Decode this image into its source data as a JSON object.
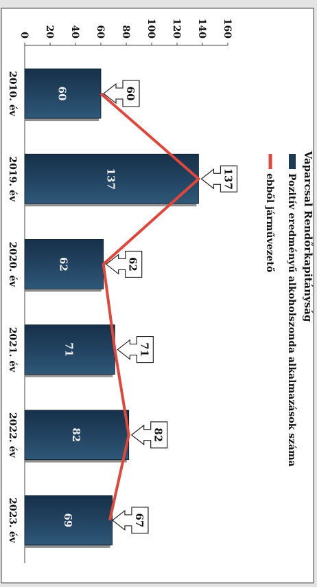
{
  "chart_data": {
    "type": "bar",
    "title": "Vaparcsal Rendőrkapitányság",
    "categories": [
      "2010. év",
      "2019. év",
      "2020. év",
      "2021. év",
      "2022. év",
      "2023. év"
    ],
    "series": [
      {
        "name": "Pozitív eredményű alkoholszonda alkalmazások száma",
        "type": "bar",
        "color": "#1e3b55",
        "values": [
          60,
          137,
          62,
          71,
          82,
          69
        ]
      },
      {
        "name": "ebből járművezető",
        "type": "line",
        "color": "#e0473a",
        "values": [
          60,
          137,
          62,
          71,
          82,
          67
        ]
      }
    ],
    "bar_labels": [
      "60",
      "137",
      "62",
      "71",
      "82",
      "69"
    ],
    "callout_labels": [
      "60",
      "137",
      "62",
      "71",
      "82",
      "67"
    ],
    "yticks": [
      "0",
      "20",
      "40",
      "60",
      "80",
      "100",
      "120",
      "140",
      "160"
    ],
    "ylim": [
      0,
      160
    ],
    "xlabel": "",
    "ylabel": "",
    "legend_position": "top",
    "orientation": "rotated 90° clockwise (page displayed sideways)",
    "grid": false
  }
}
